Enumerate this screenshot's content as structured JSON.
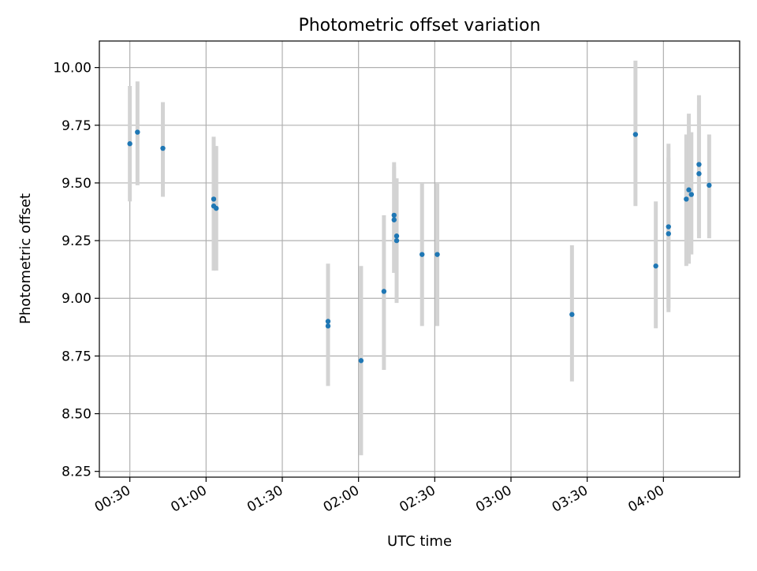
{
  "chart_data": {
    "type": "scatter",
    "title": "Photometric offset variation",
    "xlabel": "UTC time",
    "ylabel": "Photometric offset",
    "xlim": [
      "00:18",
      "04:30"
    ],
    "ylim": [
      8.225,
      10.115
    ],
    "x_ticks": [
      "00:30",
      "01:00",
      "01:30",
      "02:00",
      "02:30",
      "03:00",
      "03:30",
      "04:00"
    ],
    "y_ticks": [
      "8.25",
      "8.50",
      "8.75",
      "9.00",
      "9.25",
      "9.50",
      "9.75",
      "10.00"
    ],
    "grid": true,
    "colors": {
      "points": "#1f77b4",
      "error_bars": "#d3d3d3",
      "grid": "#b0b0b0"
    },
    "points": [
      {
        "x": "00:30",
        "y": 9.67,
        "ylow": 9.42,
        "yhigh": 9.92
      },
      {
        "x": "00:33",
        "y": 9.72,
        "ylow": 9.49,
        "yhigh": 9.94
      },
      {
        "x": "00:43",
        "y": 9.65,
        "ylow": 9.44,
        "yhigh": 9.85
      },
      {
        "x": "01:03",
        "y": 9.43,
        "ylow": 9.13,
        "yhigh": 9.7
      },
      {
        "x": "01:03",
        "y": 9.4,
        "ylow": 9.12,
        "yhigh": 9.66
      },
      {
        "x": "01:04",
        "y": 9.39,
        "ylow": 9.12,
        "yhigh": 9.66
      },
      {
        "x": "01:48",
        "y": 8.9,
        "ylow": 8.63,
        "yhigh": 9.15
      },
      {
        "x": "01:48",
        "y": 8.88,
        "ylow": 8.62,
        "yhigh": 9.15
      },
      {
        "x": "02:01",
        "y": 8.73,
        "ylow": 8.32,
        "yhigh": 9.14
      },
      {
        "x": "02:10",
        "y": 9.03,
        "ylow": 8.69,
        "yhigh": 9.36
      },
      {
        "x": "02:14",
        "y": 9.36,
        "ylow": 9.11,
        "yhigh": 9.59
      },
      {
        "x": "02:14",
        "y": 9.34,
        "ylow": 9.11,
        "yhigh": 9.57
      },
      {
        "x": "02:15",
        "y": 9.27,
        "ylow": 8.99,
        "yhigh": 9.52
      },
      {
        "x": "02:15",
        "y": 9.25,
        "ylow": 8.98,
        "yhigh": 9.51
      },
      {
        "x": "02:25",
        "y": 9.19,
        "ylow": 8.88,
        "yhigh": 9.5
      },
      {
        "x": "02:31",
        "y": 9.19,
        "ylow": 8.88,
        "yhigh": 9.5
      },
      {
        "x": "03:24",
        "y": 8.93,
        "ylow": 8.64,
        "yhigh": 9.23
      },
      {
        "x": "03:49",
        "y": 9.71,
        "ylow": 9.4,
        "yhigh": 10.03
      },
      {
        "x": "03:57",
        "y": 9.14,
        "ylow": 8.87,
        "yhigh": 9.42
      },
      {
        "x": "04:02",
        "y": 9.31,
        "ylow": 8.96,
        "yhigh": 9.67
      },
      {
        "x": "04:02",
        "y": 9.28,
        "ylow": 8.94,
        "yhigh": 9.61
      },
      {
        "x": "04:09",
        "y": 9.43,
        "ylow": 9.14,
        "yhigh": 9.71
      },
      {
        "x": "04:10",
        "y": 9.47,
        "ylow": 9.15,
        "yhigh": 9.8
      },
      {
        "x": "04:11",
        "y": 9.45,
        "ylow": 9.19,
        "yhigh": 9.72
      },
      {
        "x": "04:14",
        "y": 9.58,
        "ylow": 9.29,
        "yhigh": 9.88
      },
      {
        "x": "04:14",
        "y": 9.54,
        "ylow": 9.26,
        "yhigh": 9.84
      },
      {
        "x": "04:18",
        "y": 9.49,
        "ylow": 9.26,
        "yhigh": 9.71
      }
    ]
  }
}
